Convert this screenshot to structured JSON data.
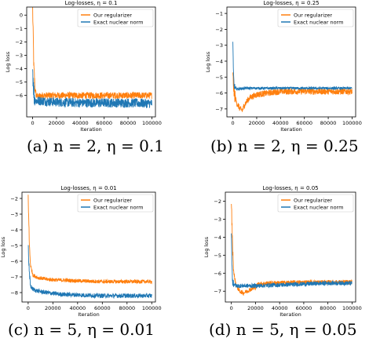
{
  "colors": {
    "ours": "#ff7f0e",
    "exact": "#1f77b4"
  },
  "chart_data": [
    {
      "type": "line",
      "title": "Log-losses, η = 0.1",
      "caption": "(a) n = 2, η = 0.1",
      "xlabel": "Iteration",
      "ylabel": "Log loss",
      "xlim": [
        -5000,
        103000
      ],
      "ylim": [
        -7.6,
        0.6
      ],
      "xticks": [
        0,
        20000,
        40000,
        60000,
        80000,
        100000
      ],
      "xtick_labels": [
        "0",
        "20000",
        "40000",
        "60000",
        "80000",
        "100000"
      ],
      "yticks": [
        -6,
        -5,
        -4,
        -3,
        -2,
        -1,
        0
      ],
      "ytick_labels": [
        "−6",
        "−5",
        "−4",
        "−3",
        "−2",
        "−1",
        "0"
      ],
      "legend": [
        "Our regularizer",
        "Exact nuclear norm"
      ],
      "legend_position": "top-right",
      "series": [
        {
          "name": "Our regularizer",
          "x": [
            0,
            1000,
            2000,
            3000,
            5000,
            8000,
            12000,
            20000,
            40000,
            60000,
            80000,
            100000
          ],
          "y": [
            0.4,
            -4.0,
            -5.5,
            -6.0,
            -6.1,
            -6.0,
            -6.0,
            -6.0,
            -6.0,
            -6.0,
            -6.0,
            -6.0
          ],
          "noise": 0.25
        },
        {
          "name": "Exact nuclear norm",
          "x": [
            0,
            1000,
            2000,
            3000,
            5000,
            8000,
            12000,
            20000,
            40000,
            60000,
            80000,
            100000
          ],
          "y": [
            -4.0,
            -5.8,
            -6.3,
            -6.4,
            -6.4,
            -6.4,
            -6.45,
            -6.5,
            -6.55,
            -6.55,
            -6.55,
            -6.6
          ],
          "noise": 0.35
        }
      ]
    },
    {
      "type": "line",
      "title": "Log-losses, η = 0.25",
      "caption": "(b) n = 2, η = 0.25",
      "xlabel": "Iteration",
      "ylabel": "Log loss",
      "xlim": [
        -5000,
        103000
      ],
      "ylim": [
        -7.5,
        -0.6
      ],
      "xticks": [
        0,
        20000,
        40000,
        60000,
        80000,
        100000
      ],
      "xtick_labels": [
        "0",
        "20000",
        "40000",
        "60000",
        "80000",
        "100000"
      ],
      "yticks": [
        -7,
        -6,
        -5,
        -4,
        -3,
        -2,
        -1
      ],
      "ytick_labels": [
        "−7",
        "−6",
        "−5",
        "−4",
        "−3",
        "−2",
        "−1"
      ],
      "legend": [
        "Our regularizer",
        "Exact nuclear norm"
      ],
      "legend_position": "top-right",
      "series": [
        {
          "name": "Our regularizer",
          "x": [
            0,
            1000,
            3000,
            6000,
            8000,
            10000,
            14000,
            20000,
            30000,
            40000,
            60000,
            80000,
            100000
          ],
          "y": [
            -5.0,
            -5.9,
            -6.6,
            -7.0,
            -7.1,
            -6.7,
            -6.3,
            -6.1,
            -6.0,
            -5.9,
            -5.9,
            -5.9,
            -5.9
          ],
          "noise": 0.2
        },
        {
          "name": "Exact nuclear norm",
          "x": [
            0,
            500,
            1000,
            2000,
            4000,
            10000,
            20000,
            40000,
            60000,
            80000,
            100000
          ],
          "y": [
            -2.8,
            -4.8,
            -5.5,
            -5.7,
            -5.75,
            -5.7,
            -5.7,
            -5.7,
            -5.7,
            -5.7,
            -5.7
          ],
          "noise": 0.08
        }
      ]
    },
    {
      "type": "line",
      "title": "Log-losses, η = 0.01",
      "caption": "(c) n = 5, η = 0.01",
      "xlabel": "Iteration",
      "ylabel": "Log loss",
      "xlim": [
        -5000,
        103000
      ],
      "ylim": [
        -8.6,
        -1.6
      ],
      "xticks": [
        0,
        20000,
        40000,
        60000,
        80000,
        100000
      ],
      "xtick_labels": [
        "0",
        "20000",
        "40000",
        "60000",
        "80000",
        "100000"
      ],
      "yticks": [
        -8,
        -7,
        -6,
        -5,
        -4,
        -3,
        -2
      ],
      "ytick_labels": [
        "−8",
        "−7",
        "−6",
        "−5",
        "−4",
        "−3",
        "−2"
      ],
      "legend": [
        "Our regularizer",
        "Exact nuclear norm"
      ],
      "legend_position": "top-right",
      "series": [
        {
          "name": "Our regularizer",
          "x": [
            0,
            1000,
            2000,
            4000,
            8000,
            15000,
            25000,
            40000,
            60000,
            80000,
            100000
          ],
          "y": [
            -1.8,
            -5.0,
            -6.3,
            -6.9,
            -7.05,
            -7.15,
            -7.2,
            -7.25,
            -7.3,
            -7.3,
            -7.3
          ],
          "noise": 0.12
        },
        {
          "name": "Exact nuclear norm",
          "x": [
            0,
            500,
            1000,
            2000,
            4000,
            8000,
            15000,
            25000,
            40000,
            60000,
            80000,
            100000
          ],
          "y": [
            -4.8,
            -6.0,
            -7.0,
            -7.6,
            -7.8,
            -7.9,
            -8.0,
            -8.1,
            -8.15,
            -8.2,
            -8.2,
            -8.2
          ],
          "noise": 0.14
        }
      ]
    },
    {
      "type": "line",
      "title": "Log-losses, η = 0.05",
      "caption": "(d) n = 5, η = 0.05",
      "xlabel": "Iteration",
      "ylabel": "Log loss",
      "xlim": [
        -5000,
        103000
      ],
      "ylim": [
        -7.6,
        -1.5
      ],
      "xticks": [
        0,
        20000,
        40000,
        60000,
        80000,
        100000
      ],
      "xtick_labels": [
        "0",
        "20000",
        "40000",
        "60000",
        "80000",
        "100000"
      ],
      "yticks": [
        -7,
        -6,
        -5,
        -4,
        -3,
        -2
      ],
      "ytick_labels": [
        "−7",
        "−6",
        "−5",
        "−4",
        "−3",
        "−2"
      ],
      "legend": [
        "Our regularizer",
        "Exact nuclear norm"
      ],
      "legend_position": "top-right",
      "series": [
        {
          "name": "Our regularizer",
          "x": [
            0,
            1000,
            2000,
            4000,
            7000,
            10000,
            13000,
            16000,
            20000,
            22000,
            30000,
            60000,
            100000
          ],
          "y": [
            -2.0,
            -4.5,
            -6.0,
            -6.7,
            -7.0,
            -7.1,
            -7.0,
            -6.9,
            -6.8,
            -6.6,
            -6.55,
            -6.5,
            -6.5
          ],
          "noise": 0.12
        },
        {
          "name": "Exact nuclear norm",
          "x": [
            0,
            500,
            1000,
            2000,
            4000,
            8000,
            20000,
            40000,
            60000,
            80000,
            100000
          ],
          "y": [
            -3.8,
            -5.5,
            -6.4,
            -6.6,
            -6.7,
            -6.7,
            -6.7,
            -6.65,
            -6.6,
            -6.55,
            -6.55
          ],
          "noise": 0.12
        }
      ]
    }
  ]
}
